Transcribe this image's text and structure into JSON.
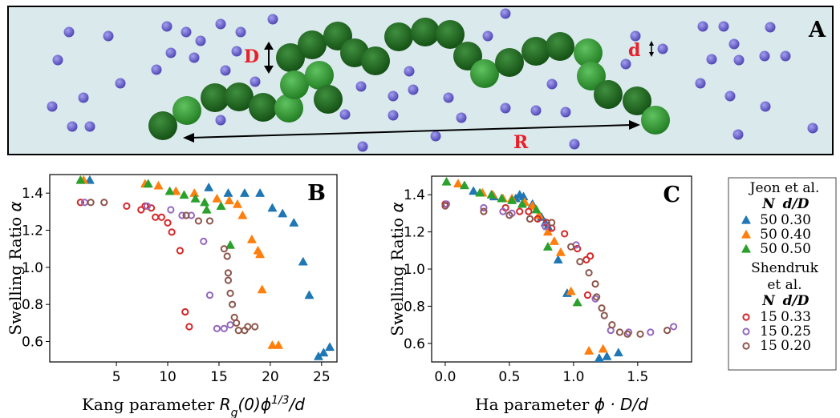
{
  "diagram": {
    "panel_label": "A",
    "labels": [
      "D",
      "d",
      "R"
    ]
  },
  "legend": {
    "groups": [
      {
        "title": [
          "Jeon et al."
        ],
        "columns": [
          "N",
          "d/D"
        ],
        "entries": [
          {
            "N": "50",
            "ratio": "0.30",
            "color": "#1f77b4",
            "marker": "triangle"
          },
          {
            "N": "50",
            "ratio": "0.40",
            "color": "#ff7f0e",
            "marker": "triangle"
          },
          {
            "N": "50",
            "ratio": "0.50",
            "color": "#2ca02c",
            "marker": "triangle"
          }
        ]
      },
      {
        "title": [
          "Shendruk",
          "et al."
        ],
        "columns": [
          "N",
          "d/D"
        ],
        "entries": [
          {
            "N": "15",
            "ratio": "0.33",
            "color": "#d62728",
            "marker": "circle"
          },
          {
            "N": "15",
            "ratio": "0.25",
            "color": "#9467bd",
            "marker": "circle"
          },
          {
            "N": "15",
            "ratio": "0.20",
            "color": "#8c564b",
            "marker": "circle"
          }
        ]
      }
    ]
  },
  "chart_data": [
    {
      "type": "scatter",
      "panel_label": "B",
      "xlabel": [
        {
          "text": "Kang parameter "
        },
        {
          "text": "R",
          "math": true
        },
        {
          "text": "g",
          "math": true,
          "shift": "sub"
        },
        {
          "text": "(0)ϕ",
          "math": true
        },
        {
          "text": "1/3",
          "math": true,
          "shift": "super"
        },
        {
          "text": "/d",
          "math": true
        }
      ],
      "ylabel": [
        {
          "text": "Swelling Ratio "
        },
        {
          "text": "α",
          "math": true
        }
      ],
      "xlim": [
        -1.5,
        26.5
      ],
      "ylim": [
        0.49,
        1.5
      ],
      "xticks": [
        5,
        10,
        15,
        20,
        25
      ],
      "yticks": [
        0.6,
        0.8,
        {
          "value": 1,
          "label": "1.0"
        },
        1.2,
        1.4
      ],
      "series": [
        {
          "color": "#1f77b4",
          "marker": "triangle",
          "x": [
            2.4,
            14.0,
            15.9,
            17.5,
            19.0,
            20.2,
            21.2,
            22.3,
            23.2,
            23.8,
            24.7,
            25.2,
            25.8
          ],
          "y": [
            1.47,
            1.43,
            1.4,
            1.4,
            1.4,
            1.32,
            1.29,
            1.24,
            1.03,
            0.85,
            0.52,
            0.54,
            0.57
          ]
        },
        {
          "color": "#ff7f0e",
          "marker": "triangle",
          "x": [
            1.8,
            7.8,
            9.1,
            10.8,
            12.6,
            14.8,
            16.0,
            16.8,
            17.3,
            18.2,
            18.8,
            19.0,
            19.2,
            20.2,
            20.8
          ],
          "y": [
            1.47,
            1.45,
            1.44,
            1.41,
            1.4,
            1.37,
            1.36,
            1.34,
            1.28,
            1.15,
            1.09,
            1.07,
            0.88,
            0.58,
            0.58
          ]
        },
        {
          "color": "#2ca02c",
          "marker": "triangle",
          "x": [
            1.5,
            8.1,
            10.2,
            11.6,
            12.7,
            13.6,
            13.8,
            15.2,
            16.1
          ],
          "y": [
            1.47,
            1.45,
            1.41,
            1.39,
            1.37,
            1.35,
            1.31,
            1.33,
            1.12
          ]
        },
        {
          "color": "#d62728",
          "marker": "circle",
          "x": [
            1.5,
            6.0,
            7.4,
            7.8,
            8.4,
            8.8,
            9.4,
            10.0,
            10.4,
            11.2,
            11.7,
            12.1
          ],
          "y": [
            1.35,
            1.33,
            1.31,
            1.33,
            1.32,
            1.27,
            1.27,
            1.24,
            1.19,
            1.09,
            0.76,
            0.68
          ]
        },
        {
          "color": "#9467bd",
          "marker": "circle",
          "x": [
            1.9,
            8.0,
            10.3,
            11.4,
            12.3,
            13.5,
            14.1,
            14.8,
            15.5,
            16.1
          ],
          "y": [
            1.35,
            1.33,
            1.31,
            1.28,
            1.28,
            1.14,
            0.85,
            0.67,
            0.67,
            0.69
          ]
        },
        {
          "color": "#8c564b",
          "marker": "circle",
          "x": [
            2.5,
            3.8,
            11.8,
            13.0,
            14.1,
            15.5,
            15.8,
            15.9,
            15.9,
            16.1,
            16.3,
            16.5,
            16.7,
            16.9,
            17.5,
            17.8,
            18.5
          ],
          "y": [
            1.35,
            1.35,
            1.28,
            1.25,
            1.25,
            1.1,
            1.06,
            0.97,
            0.93,
            0.86,
            0.8,
            0.73,
            0.7,
            0.66,
            0.66,
            0.68,
            0.68
          ]
        }
      ]
    },
    {
      "type": "scatter",
      "panel_label": "C",
      "xlabel": [
        {
          "text": "Ha parameter "
        },
        {
          "text": "ϕ · D/d",
          "math": true
        }
      ],
      "ylabel": [
        {
          "text": "Swelling Ratio "
        },
        {
          "text": "α",
          "math": true
        }
      ],
      "xlim": [
        -0.106,
        1.92
      ],
      "ylim": [
        0.5,
        1.5
      ],
      "xticks": [
        {
          "value": 0,
          "label": "0.0"
        },
        0.5,
        {
          "value": 1,
          "label": "1.0"
        },
        1.5
      ],
      "yticks": [
        0.6,
        0.8,
        {
          "value": 1,
          "label": "1.0"
        },
        1.2,
        1.4
      ],
      "series": [
        {
          "color": "#1f77b4",
          "marker": "triangle",
          "x": [
            0.22,
            0.38,
            0.55,
            0.58,
            0.61,
            0.68,
            0.75,
            0.78,
            0.8,
            0.88,
            0.95,
            1.2,
            1.26,
            1.35
          ],
          "y": [
            1.42,
            1.39,
            1.38,
            1.4,
            1.39,
            1.35,
            1.28,
            1.25,
            1.23,
            1.05,
            0.87,
            0.52,
            0.53,
            0.55
          ]
        },
        {
          "color": "#ff7f0e",
          "marker": "triangle",
          "x": [
            0.1,
            0.29,
            0.37,
            0.45,
            0.52,
            0.62,
            0.68,
            0.73,
            0.8,
            0.85,
            0.9,
            0.98,
            1.12,
            1.23
          ],
          "y": [
            1.46,
            1.41,
            1.4,
            1.38,
            1.38,
            1.36,
            1.34,
            1.29,
            1.2,
            1.15,
            1.09,
            0.88,
            0.56,
            0.57
          ]
        },
        {
          "color": "#2ca02c",
          "marker": "triangle",
          "x": [
            0.01,
            0.15,
            0.27,
            0.36,
            0.44,
            0.52,
            0.6,
            0.71,
            0.8,
            1.03
          ],
          "y": [
            1.47,
            1.45,
            1.41,
            1.4,
            1.38,
            1.37,
            1.35,
            1.32,
            1.12,
            0.82
          ]
        },
        {
          "color": "#d62728",
          "marker": "circle",
          "x": [
            0.0,
            0.47,
            0.58,
            0.65,
            0.72,
            0.79,
            0.83,
            0.93,
            1.03,
            1.1,
            1.13,
            1.11
          ],
          "y": [
            1.35,
            1.33,
            1.31,
            1.31,
            1.27,
            1.25,
            1.22,
            1.19,
            1.11,
            1.05,
            1.07,
            0.86
          ]
        },
        {
          "color": "#9467bd",
          "marker": "circle",
          "x": [
            0.01,
            0.3,
            0.45,
            0.52,
            0.66,
            0.78,
            1.02,
            1.17,
            1.29,
            1.43,
            1.6,
            1.78
          ],
          "y": [
            1.35,
            1.33,
            1.31,
            1.3,
            1.27,
            1.23,
            1.13,
            0.84,
            0.67,
            0.66,
            0.66,
            0.69
          ]
        },
        {
          "color": "#8c564b",
          "marker": "circle",
          "x": [
            0.0,
            0.3,
            0.5,
            0.66,
            0.83,
            0.98,
            1.05,
            1.12,
            1.17,
            1.18,
            1.22,
            1.24,
            1.3,
            1.36,
            1.42,
            1.52,
            1.73
          ],
          "y": [
            1.34,
            1.31,
            1.29,
            1.27,
            1.25,
            1.12,
            1.04,
            0.98,
            0.92,
            0.85,
            0.79,
            0.75,
            0.7,
            0.66,
            0.65,
            0.65,
            0.67
          ]
        }
      ]
    }
  ]
}
